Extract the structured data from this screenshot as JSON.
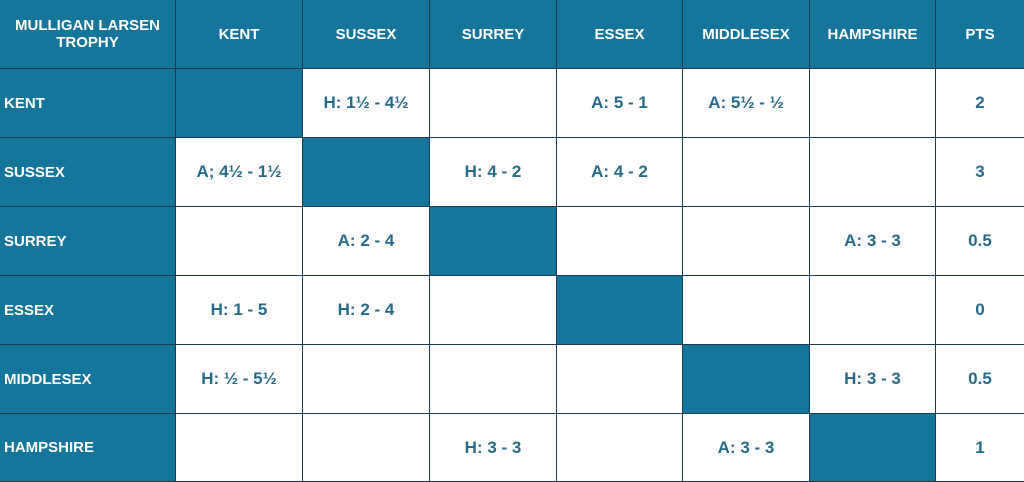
{
  "table": {
    "header": [
      "MULLIGAN LARSEN TROPHY",
      "KENT",
      "SUSSEX",
      "SURREY",
      "ESSEX",
      "MIDDLESEX",
      "HAMPSHIRE",
      "PTS"
    ],
    "rows": [
      {
        "label": "KENT",
        "cells": [
          null,
          "H: 1½ - 4½",
          null,
          "A: 5 - 1",
          "A: 5½ - ½",
          null
        ],
        "pts": 2
      },
      {
        "label": "SUSSEX",
        "cells": [
          "A; 4½ - 1½",
          null,
          "H: 4 - 2",
          "A: 4 - 2",
          null,
          null
        ],
        "pts": 3
      },
      {
        "label": "SURREY",
        "cells": [
          null,
          "A: 2 - 4",
          null,
          null,
          null,
          "A: 3 - 3"
        ],
        "pts": 0.5
      },
      {
        "label": "ESSEX",
        "cells": [
          "H: 1 - 5",
          "H: 2 - 4",
          null,
          null,
          null,
          null
        ],
        "pts": 0
      },
      {
        "label": "MIDDLESEX",
        "cells": [
          "H: ½ - 5½",
          null,
          null,
          null,
          null,
          "H: 3 - 3"
        ],
        "pts": 0.5
      },
      {
        "label": "HAMPSHIRE",
        "cells": [
          null,
          null,
          "H: 3 - 3",
          null,
          "A: 3 - 3",
          null
        ],
        "pts": 1
      }
    ]
  }
}
